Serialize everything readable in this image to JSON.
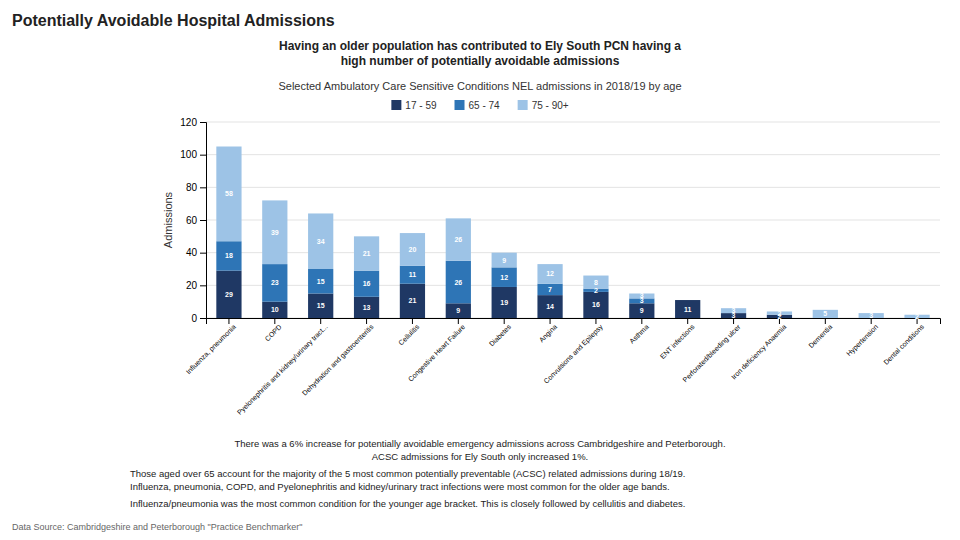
{
  "chart_data": {
    "type": "bar",
    "stacked": true,
    "title": "Potentially Avoidable Hospital Admissions",
    "subtitle": "Having an older population has contributed to Ely South PCN having a\nhigh number of potentially avoidable admissions",
    "y_label": "Admissions",
    "annotations": [
      "Selected Ambulatory Care Sensitive Conditions NEL admissions in 2018/19 by age",
      "There was a 6% increase for potentially avoidable emergency admissions across Cambridgeshire and Peterborough.\nACSC admissions for Ely South only increased 1%.",
      "Those aged over 65 account for the majority of the 5 most common potentially preventable (ACSC) related admissions during 18/19.\nInfluenza, pneumonia, COPD, and Pyelonephritis and kidney/urinary tract infections were most common for the older age bands.",
      "Influenza/pneumonia was the most common condition for the younger age bracket. This is closely followed by cellulitis and diabetes.",
      "Data Source: Cambridgeshire and Peterborough \"Practice Benchmarker\""
    ],
    "categories": [
      "Influenza, pneumonia",
      "COPD",
      "Pyelonephritis and kidney/urinary tract...",
      "Dehydration and gastroenteritis",
      "Cellulitis",
      "Congestive Heart Failure",
      "Diabetes",
      "Angina",
      "Convulsions and Epilepsy",
      "Asthma",
      "ENT infections",
      "Perforated/bleeding ulcer",
      "Iron deficiency Anaemia",
      "Dementia",
      "Hypertension",
      "Dental conditions"
    ],
    "series": [
      {
        "name": "17 - 59",
        "color": "#1f3864",
        "values": [
          29,
          10,
          15,
          13,
          21,
          9,
          19,
          14,
          16,
          9,
          11,
          3,
          2,
          0,
          0,
          0
        ]
      },
      {
        "name": "65 - 74",
        "color": "#2e75b6",
        "values": [
          18,
          23,
          15,
          16,
          11,
          26,
          12,
          7,
          2,
          3,
          0,
          0,
          0,
          0,
          0,
          0
        ]
      },
      {
        "name": "75 - 90+",
        "color": "#9dc3e6",
        "values": [
          58,
          39,
          34,
          21,
          20,
          26,
          9,
          12,
          8,
          3,
          0,
          3,
          2,
          5,
          3,
          2
        ]
      }
    ],
    "ylim": [
      0,
      120
    ],
    "yticks": [
      0,
      20,
      40,
      60,
      80,
      100,
      120
    ],
    "grid": true,
    "legend": "top",
    "data_labels": true
  }
}
